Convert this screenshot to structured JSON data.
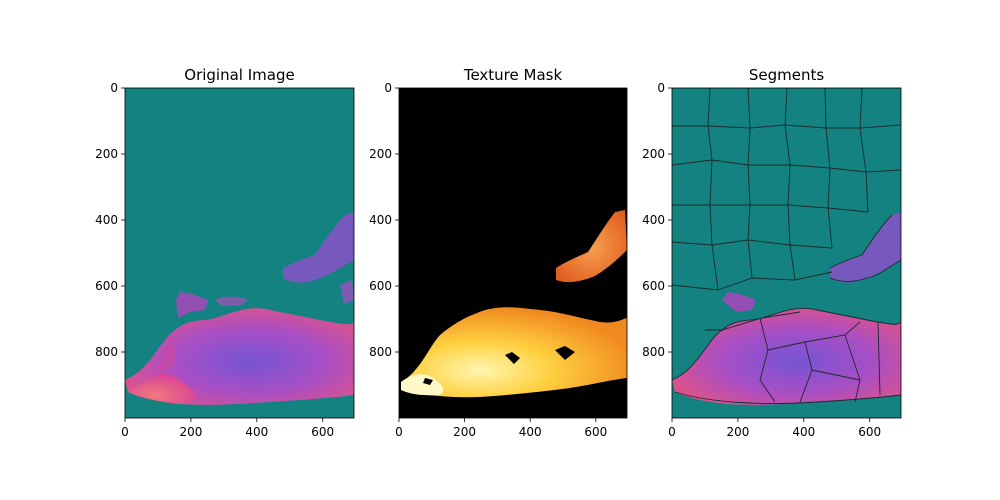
{
  "figure": {
    "panels": [
      {
        "id": "original",
        "title": "Original Image",
        "bg": "#138280"
      },
      {
        "id": "mask",
        "title": "Texture Mask",
        "bg": "#000000"
      },
      {
        "id": "segments",
        "title": "Segments",
        "bg": "#138280"
      }
    ]
  },
  "chart_data": [
    {
      "type": "image",
      "title": "Original Image",
      "xticks": [
        0,
        200,
        400,
        600
      ],
      "yticks": [
        0,
        200,
        400,
        600,
        800
      ],
      "xlim": [
        0,
        695
      ],
      "ylim": [
        1000,
        0
      ],
      "colors": {
        "background": "#138280",
        "texture_low": "#e8508a",
        "texture_high": "#8a52d6"
      }
    },
    {
      "type": "image",
      "title": "Texture Mask",
      "xticks": [
        0,
        200,
        400,
        600
      ],
      "yticks": [
        0,
        200,
        400,
        600,
        800
      ],
      "xlim": [
        0,
        695
      ],
      "ylim": [
        1000,
        0
      ],
      "colors": {
        "background": "#000000",
        "texture_low": "#ff8a2a",
        "texture_high": "#fff2a0"
      }
    },
    {
      "type": "image",
      "title": "Segments",
      "xticks": [
        0,
        200,
        400,
        600
      ],
      "yticks": [
        0,
        200,
        400,
        600,
        800
      ],
      "xlim": [
        0,
        695
      ],
      "ylim": [
        1000,
        0
      ],
      "colors": {
        "background": "#138280",
        "boundary": "#1a2a2a"
      }
    }
  ]
}
